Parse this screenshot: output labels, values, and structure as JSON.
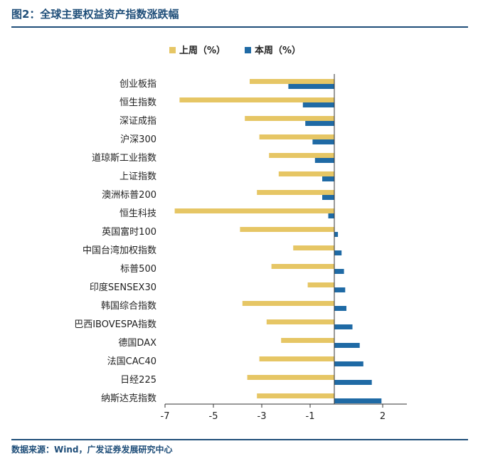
{
  "header": {
    "title": "图2：全球主要权益资产指数涨跌幅"
  },
  "footer": {
    "source": "数据来源：Wind，广发证券发展研究中心"
  },
  "colors": {
    "last_week": "#e6c665",
    "this_week": "#1f6aa5",
    "brand": "#1f4e79"
  },
  "chart_data": {
    "type": "bar",
    "orientation": "horizontal",
    "title": "图2：全球主要权益资产指数涨跌幅",
    "categories": [
      "创业板指",
      "恒生指数",
      "深证成指",
      "沪深300",
      "道琼斯工业指数",
      "上证指数",
      "澳洲标普200",
      "恒生科技",
      "英国富时100",
      "中国台湾加权指数",
      "标普500",
      "印度SENSEX30",
      "韩国综合指数",
      "巴西IBOVESPA指数",
      "德国DAX",
      "法国CAC40",
      "日经225",
      "纳斯达克指数"
    ],
    "series": [
      {
        "name": "上周（%）",
        "values": [
          -3.5,
          -6.4,
          -3.7,
          -3.1,
          -2.7,
          -2.3,
          -3.2,
          -6.6,
          -3.9,
          -1.7,
          -2.6,
          -1.1,
          -3.8,
          -2.8,
          -2.2,
          -3.1,
          -3.6,
          -3.2
        ]
      },
      {
        "name": "本周（%）",
        "values": [
          -1.9,
          -1.3,
          -1.2,
          -0.9,
          -0.8,
          -0.5,
          -0.5,
          -0.25,
          0.15,
          0.3,
          0.4,
          0.45,
          0.5,
          0.75,
          1.05,
          1.2,
          1.55,
          1.95
        ]
      }
    ],
    "xlim": [
      -7,
      3
    ],
    "xticks": [
      -7,
      -5,
      -3,
      -1,
      2
    ],
    "legend_position": "top-center",
    "grid": false
  }
}
